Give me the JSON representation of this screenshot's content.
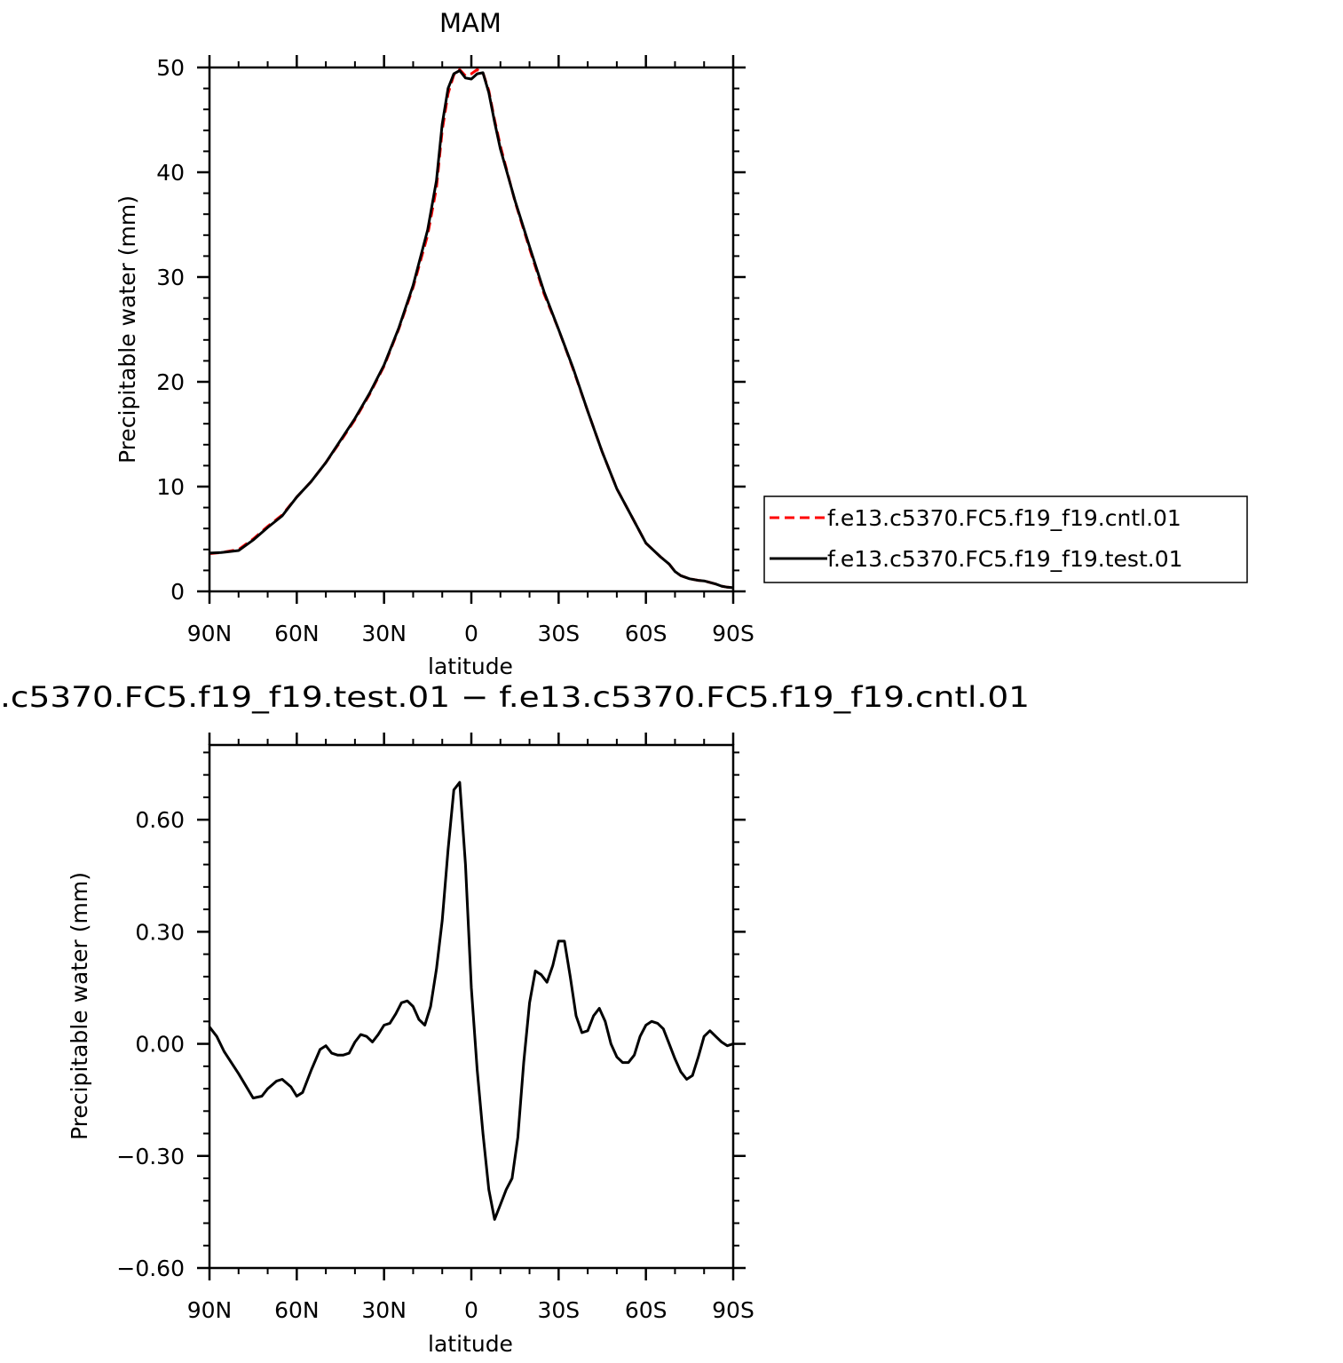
{
  "chart_data": [
    {
      "type": "line",
      "title": "MAM",
      "xlabel": "latitude",
      "ylabel": "Precipitable water (mm)",
      "xlim": [
        90,
        -90
      ],
      "ylim": [
        0,
        50
      ],
      "x_ticks": [
        90,
        60,
        30,
        0,
        -30,
        -60,
        -90
      ],
      "x_tick_labels": [
        "90N",
        "60N",
        "30N",
        "0",
        "30S",
        "60S",
        "90S"
      ],
      "y_ticks": [
        0,
        10,
        20,
        30,
        40,
        50
      ],
      "y_tick_labels": [
        "0",
        "10",
        "20",
        "30",
        "40",
        "50"
      ],
      "grid": false,
      "legend_position": "right, outside plot",
      "series": [
        {
          "name": "f.e13.c5370.FC5.f19_f19.cntl.01",
          "color": "#ff0000",
          "style": "dashed",
          "x": [
            90,
            86,
            80,
            75,
            70,
            65,
            60,
            55,
            50,
            45,
            40,
            35,
            30,
            25,
            20,
            15,
            12,
            10,
            8,
            6,
            4,
            2,
            0,
            -2,
            -4,
            -6,
            -8,
            -10,
            -15,
            -20,
            -25,
            -30,
            -35,
            -40,
            -45,
            -50,
            -55,
            -60,
            -65,
            -68,
            -70,
            -72,
            -75,
            -78,
            -80,
            -84,
            -86,
            -88,
            -90
          ],
          "y": [
            3.6,
            3.7,
            4.0,
            5.0,
            6.2,
            7.3,
            9.0,
            10.5,
            12.3,
            14.3,
            16.4,
            18.8,
            21.5,
            25.0,
            29.0,
            34.0,
            38.5,
            44.0,
            47.5,
            49.3,
            49.8,
            49.2,
            49.4,
            49.8,
            49.5,
            47.8,
            45.0,
            42.5,
            37.2,
            32.7,
            28.4,
            25.0,
            21.2,
            17.2,
            13.3,
            9.8,
            7.2,
            4.6,
            3.3,
            2.6,
            1.9,
            1.5,
            1.2,
            1.05,
            1.0,
            0.7,
            0.5,
            0.4,
            0.35
          ]
        },
        {
          "name": "f.e13.c5370.FC5.f19_f19.test.01",
          "color": "#000000",
          "style": "solid",
          "x": [
            90,
            86,
            80,
            75,
            70,
            65,
            60,
            55,
            50,
            45,
            40,
            35,
            30,
            25,
            20,
            15,
            12,
            10,
            8,
            6,
            4,
            2,
            0,
            -2,
            -4,
            -6,
            -8,
            -10,
            -15,
            -20,
            -25,
            -30,
            -35,
            -40,
            -45,
            -50,
            -55,
            -60,
            -65,
            -68,
            -70,
            -72,
            -75,
            -78,
            -80,
            -84,
            -86,
            -88,
            -90
          ],
          "y": [
            3.65,
            3.7,
            3.9,
            4.9,
            6.1,
            7.2,
            9.0,
            10.5,
            12.3,
            14.4,
            16.5,
            18.9,
            21.6,
            25.1,
            29.2,
            34.5,
            39.2,
            44.6,
            48.0,
            49.4,
            49.7,
            49.0,
            48.9,
            49.4,
            49.5,
            47.6,
            44.8,
            42.2,
            37.3,
            32.9,
            28.6,
            25.0,
            21.3,
            17.2,
            13.3,
            9.8,
            7.2,
            4.6,
            3.3,
            2.6,
            1.9,
            1.5,
            1.2,
            1.05,
            1.0,
            0.7,
            0.5,
            0.4,
            0.35
          ]
        }
      ]
    },
    {
      "type": "line",
      "title": ".c5370.FC5.f19_f19.test.01 − f.e13.c5370.FC5.f19_f19.cntl.01",
      "xlabel": "latitude",
      "ylabel": "Precipitable water (mm)",
      "xlim": [
        90,
        -90
      ],
      "ylim": [
        -0.6,
        0.8
      ],
      "x_ticks": [
        90,
        60,
        30,
        0,
        -30,
        -60,
        -90
      ],
      "x_tick_labels": [
        "90N",
        "60N",
        "30N",
        "0",
        "30S",
        "60S",
        "90S"
      ],
      "y_ticks": [
        -0.6,
        -0.3,
        0.0,
        0.3,
        0.6
      ],
      "y_tick_labels": [
        "−0.60",
        "−0.30",
        "0.00",
        "0.30",
        "0.60"
      ],
      "grid": false,
      "series": [
        {
          "name": "",
          "color": "#000000",
          "style": "solid",
          "x": [
            90,
            87.5,
            85,
            80,
            75,
            72,
            70,
            67,
            65,
            62,
            60,
            58,
            55,
            52,
            50,
            48,
            46,
            44,
            42,
            40,
            38,
            36,
            34,
            32,
            30,
            28,
            26,
            24,
            22,
            20,
            18,
            16,
            14,
            12,
            10,
            8,
            6,
            4,
            2,
            0,
            -2,
            -4,
            -6,
            -8,
            -10,
            -12,
            -14,
            -16,
            -18,
            -20,
            -22,
            -24,
            -26,
            -28,
            -30,
            -32,
            -34,
            -36,
            -38,
            -40,
            -42,
            -44,
            -46,
            -48,
            -50,
            -52,
            -54,
            -56,
            -58,
            -60,
            -62,
            -64,
            -66,
            -68,
            -70,
            -72,
            -74,
            -76,
            -78,
            -80,
            -82,
            -84,
            -86,
            -88,
            -90
          ],
          "y": [
            0.045,
            0.02,
            -0.02,
            -0.08,
            -0.145,
            -0.14,
            -0.12,
            -0.1,
            -0.095,
            -0.115,
            -0.14,
            -0.13,
            -0.07,
            -0.015,
            -0.005,
            -0.025,
            -0.03,
            -0.03,
            -0.025,
            0.005,
            0.025,
            0.02,
            0.005,
            0.025,
            0.05,
            0.055,
            0.08,
            0.11,
            0.115,
            0.1,
            0.065,
            0.05,
            0.1,
            0.2,
            0.33,
            0.52,
            0.68,
            0.7,
            0.48,
            0.15,
            -0.07,
            -0.24,
            -0.39,
            -0.47,
            -0.43,
            -0.39,
            -0.36,
            -0.25,
            -0.05,
            0.11,
            0.195,
            0.185,
            0.165,
            0.21,
            0.275,
            0.275,
            0.18,
            0.075,
            0.03,
            0.035,
            0.075,
            0.095,
            0.06,
            0.0,
            -0.035,
            -0.05,
            -0.05,
            -0.03,
            0.02,
            0.05,
            0.06,
            0.055,
            0.04,
            0.0,
            -0.04,
            -0.075,
            -0.095,
            -0.085,
            -0.035,
            0.02,
            0.035,
            0.02,
            0.005,
            -0.005,
            0.0
          ]
        }
      ]
    }
  ]
}
